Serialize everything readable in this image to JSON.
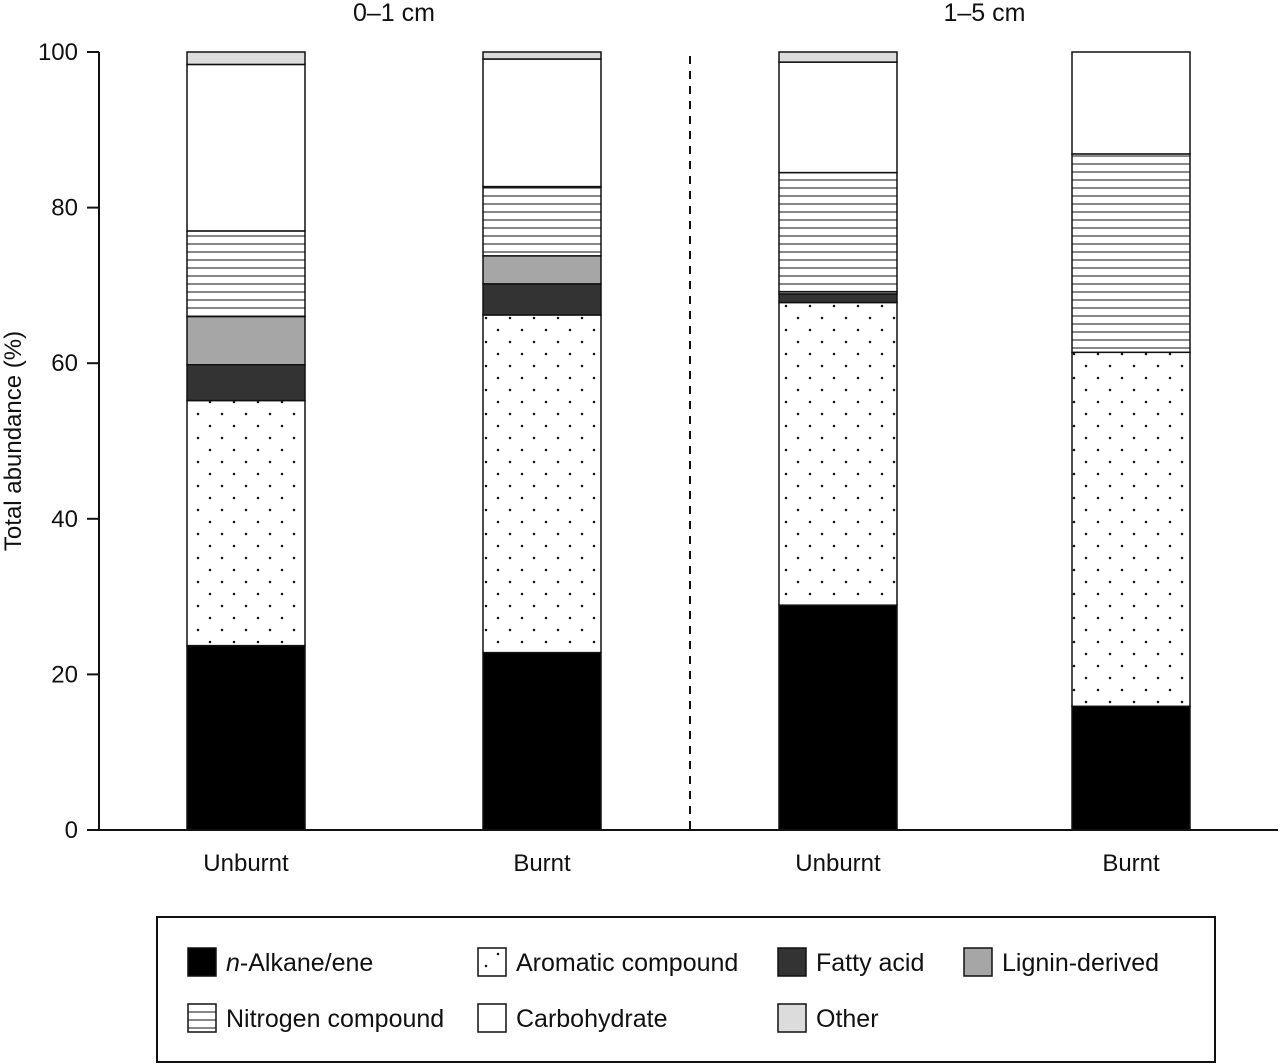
{
  "chart_data": {
    "type": "bar",
    "stacked": true,
    "ylabel": "Total abundance (%)",
    "ylim": [
      0,
      100
    ],
    "yticks": [
      0,
      20,
      40,
      60,
      80,
      100
    ],
    "groups": [
      {
        "label": "0–1 cm",
        "categories": [
          0,
          1
        ]
      },
      {
        "label": "1–5 cm",
        "categories": [
          2,
          3
        ]
      }
    ],
    "group_separator": "dashed",
    "categories": [
      "Unburnt",
      "Burnt",
      "Unburnt",
      "Burnt"
    ],
    "series": [
      {
        "key": "alkane",
        "name_prefix": "n",
        "name_rest": "-Alkane/ene",
        "pattern": "solid-black",
        "values": [
          23.7,
          22.8,
          28.9,
          15.9
        ]
      },
      {
        "key": "aromatic",
        "name": "Aromatic compound",
        "pattern": "dots",
        "values": [
          31.5,
          43.4,
          38.9,
          45.5
        ]
      },
      {
        "key": "fatty",
        "name": "Fatty acid",
        "pattern": "solid-dark-gray",
        "values": [
          4.6,
          4.0,
          1.1,
          0.0
        ]
      },
      {
        "key": "lignin",
        "name": "Lignin-derived",
        "pattern": "solid-gray",
        "values": [
          6.2,
          3.6,
          0.3,
          0.0
        ]
      },
      {
        "key": "nitrogen",
        "name": "Nitrogen compound",
        "pattern": "horizontal-lines",
        "values": [
          11.0,
          8.9,
          15.3,
          25.5
        ]
      },
      {
        "key": "carbohydrate",
        "name": "Carbohydrate",
        "pattern": "white",
        "values": [
          21.4,
          16.4,
          14.2,
          13.1
        ]
      },
      {
        "key": "other",
        "name": "Other",
        "pattern": "solid-light-gray",
        "values": [
          1.6,
          0.9,
          1.3,
          0.0
        ]
      }
    ],
    "colors": {
      "alkane": "#000000",
      "fatty": "#333333",
      "lignin": "#a6a6a6",
      "other": "#dcdcdc",
      "white": "#ffffff",
      "stroke": "#111111"
    },
    "legend": {
      "placement": "bottom",
      "columns": 4
    }
  }
}
